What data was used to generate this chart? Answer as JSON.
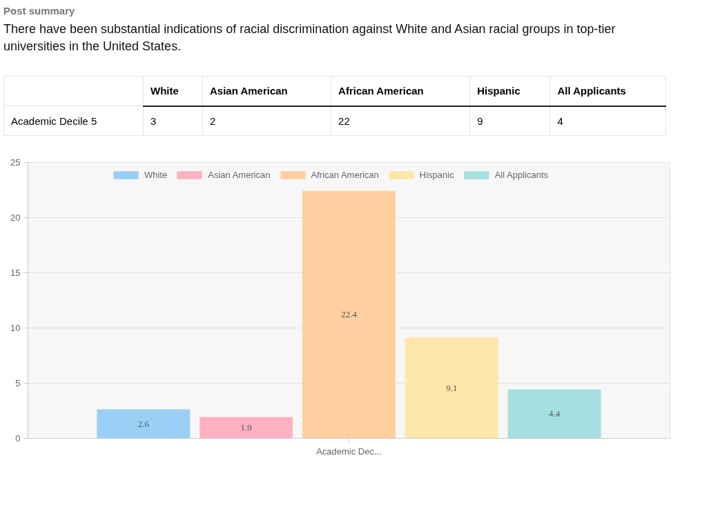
{
  "chart_data": {
    "type": "bar",
    "title": "Post summary",
    "subtitle": "There have been substantial indications of racial discrimination against White and Asian racial groups in top-tier universities in the United States.",
    "annotations": [
      "Academic Decile 5",
      "3",
      "2",
      "22",
      "9",
      "4"
    ],
    "categories": [
      "Academic Dec..."
    ],
    "series": [
      {
        "name": "White",
        "color": "#9ad0f5",
        "values": [
          2.6
        ]
      },
      {
        "name": "Asian American",
        "color": "#ffb1c1",
        "values": [
          1.9
        ]
      },
      {
        "name": "African American",
        "color": "#ffcf9f",
        "values": [
          22.4
        ]
      },
      {
        "name": "Hispanic",
        "color": "#ffe6aa",
        "values": [
          9.1
        ]
      },
      {
        "name": "All Applicants",
        "color": "#a5dfdf",
        "values": [
          4.4
        ]
      }
    ],
    "ylim": [
      0,
      25
    ],
    "yticks": [
      0,
      5,
      10,
      15,
      20,
      25
    ],
    "grid": "y",
    "legend": "top",
    "data_labels": true
  }
}
